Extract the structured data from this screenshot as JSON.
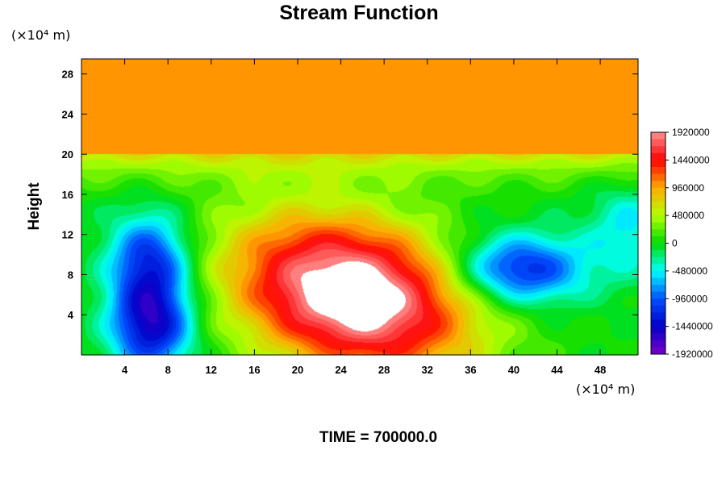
{
  "chart_data": {
    "type": "heatmap",
    "title": "Stream Function",
    "ylabel": "Height",
    "x_unit": "(×10⁴ m)",
    "y_unit": "(×10⁴ m)",
    "footer": "TIME = 700000.0",
    "xlim": [
      0,
      51.5
    ],
    "ylim": [
      0,
      29.5
    ],
    "x_ticks": [
      4,
      8,
      12,
      16,
      20,
      24,
      28,
      32,
      36,
      40,
      44,
      48
    ],
    "y_ticks": [
      4,
      8,
      12,
      16,
      20,
      24,
      28
    ],
    "colorbar": {
      "range": [
        -1920000,
        1920000
      ],
      "step": 120000,
      "labels": [
        1920000,
        1440000,
        960000,
        480000,
        0,
        -480000,
        -960000,
        -1440000,
        -1920000
      ],
      "over_color": "#ffffff",
      "colors": {
        "-1920000": "#7d00c8",
        "-1440000": "#0000c8",
        "-960000": "#0050ff",
        "-480000": "#00ffff",
        "0": "#00dc00",
        "480000": "#b4ff00",
        "960000": "#ffaa00",
        "1440000": "#ff0000",
        "1920000": "#ff9090"
      }
    },
    "features": [
      {
        "kind": "background",
        "value": 0
      },
      {
        "kind": "upper-layer",
        "above_height": 20,
        "value": 1020000
      },
      {
        "kind": "maximum",
        "x": 25,
        "y": 6,
        "value": 2300000
      },
      {
        "kind": "minimum",
        "x": 6.5,
        "y": 3,
        "value": -1500000
      },
      {
        "kind": "minimum",
        "x": 6.3,
        "y": 9.5,
        "value": -1200000
      },
      {
        "kind": "minimum",
        "x": 40.5,
        "y": 8.5,
        "value": -1300000
      },
      {
        "kind": "minimum",
        "x": 50.5,
        "y": 12.5,
        "value": -500000
      }
    ]
  }
}
